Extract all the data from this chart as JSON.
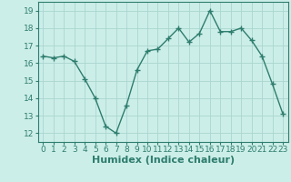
{
  "title": "",
  "xlabel": "Humidex (Indice chaleur)",
  "x": [
    0,
    1,
    2,
    3,
    4,
    5,
    6,
    7,
    8,
    9,
    10,
    11,
    12,
    13,
    14,
    15,
    16,
    17,
    18,
    19,
    20,
    21,
    22,
    23
  ],
  "y": [
    16.4,
    16.3,
    16.4,
    16.1,
    15.1,
    14.0,
    12.4,
    12.0,
    13.6,
    15.6,
    16.7,
    16.8,
    17.4,
    18.0,
    17.2,
    17.7,
    19.0,
    17.8,
    17.8,
    18.0,
    17.3,
    16.4,
    14.8,
    13.1
  ],
  "line_color": "#2e7d6e",
  "marker": "+",
  "markersize": 4,
  "linewidth": 1.0,
  "markeredgewidth": 1.0,
  "ylim": [
    11.5,
    19.5
  ],
  "xlim": [
    -0.5,
    23.5
  ],
  "yticks": [
    12,
    13,
    14,
    15,
    16,
    17,
    18,
    19
  ],
  "xticks": [
    0,
    1,
    2,
    3,
    4,
    5,
    6,
    7,
    8,
    9,
    10,
    11,
    12,
    13,
    14,
    15,
    16,
    17,
    18,
    19,
    20,
    21,
    22,
    23
  ],
  "bg_color": "#cceee8",
  "grid_color": "#aad6d0",
  "xlabel_fontsize": 8,
  "tick_fontsize": 6.5
}
